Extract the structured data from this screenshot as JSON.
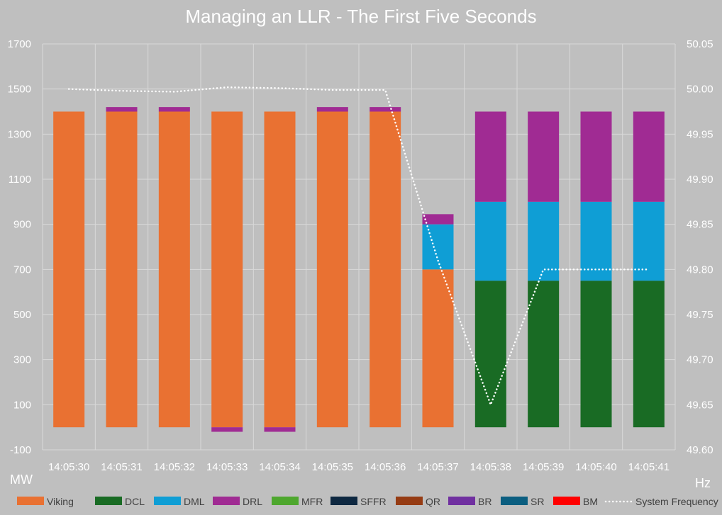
{
  "chart_data": {
    "type": "bar",
    "stacked": true,
    "title": "Managing an LLR - The First Five Seconds",
    "ylabel": "MW",
    "y2label": "Hz",
    "ylim": [
      -100,
      1700
    ],
    "yticks": [
      -100,
      100,
      300,
      500,
      700,
      900,
      1100,
      1300,
      1500,
      1700
    ],
    "y2lim": [
      49.6,
      50.05
    ],
    "y2ticks": [
      "49.60",
      "49.65",
      "49.70",
      "49.75",
      "49.80",
      "49.85",
      "49.90",
      "49.95",
      "50.00",
      "50.05"
    ],
    "grid": true,
    "legend_position": "bottom",
    "background": "#bfbfbf",
    "categories": [
      "14:05:30",
      "14:05:31",
      "14:05:32",
      "14:05:33",
      "14:05:34",
      "14:05:35",
      "14:05:36",
      "14:05:37",
      "14:05:38",
      "14:05:39",
      "14:05:40",
      "14:05:41"
    ],
    "series": [
      {
        "name": "Viking",
        "color": "#e97132",
        "values": [
          1400,
          1400,
          1400,
          1400,
          1400,
          1400,
          1400,
          700,
          0,
          0,
          0,
          0
        ]
      },
      {
        "name": "DCL",
        "color": "#196b24",
        "values": [
          0,
          0,
          0,
          0,
          0,
          0,
          0,
          0,
          650,
          650,
          650,
          650
        ]
      },
      {
        "name": "DML",
        "color": "#0f9ed5",
        "values": [
          0,
          0,
          0,
          0,
          0,
          0,
          0,
          200,
          350,
          350,
          350,
          350
        ]
      },
      {
        "name": "DRL",
        "color": "#a02b93",
        "values": [
          0,
          20,
          20,
          -20,
          -20,
          20,
          20,
          45,
          400,
          400,
          400,
          400
        ]
      },
      {
        "name": "MFR",
        "color": "#4ea72e",
        "values": [
          0,
          0,
          0,
          0,
          0,
          0,
          0,
          0,
          0,
          0,
          0,
          0
        ]
      },
      {
        "name": "SFFR",
        "color": "#0e2841",
        "values": [
          0,
          0,
          0,
          0,
          0,
          0,
          0,
          0,
          0,
          0,
          0,
          0
        ]
      },
      {
        "name": "QR",
        "color": "#963c14",
        "values": [
          0,
          0,
          0,
          0,
          0,
          0,
          0,
          0,
          0,
          0,
          0,
          0
        ]
      },
      {
        "name": "BR",
        "color": "#7030a0",
        "values": [
          0,
          0,
          0,
          0,
          0,
          0,
          0,
          0,
          0,
          0,
          0,
          0
        ]
      },
      {
        "name": "SR",
        "color": "#0b5e80",
        "values": [
          0,
          0,
          0,
          0,
          0,
          0,
          0,
          0,
          0,
          0,
          0,
          0
        ]
      },
      {
        "name": "BM",
        "color": "#ff0000",
        "values": [
          0,
          0,
          0,
          0,
          0,
          0,
          0,
          0,
          0,
          0,
          0,
          0
        ]
      }
    ],
    "line_series": {
      "name": "System Frequency",
      "color": "#ffffff",
      "style": "dotted",
      "axis": "right",
      "values": [
        50.0,
        49.998,
        49.997,
        50.002,
        50.001,
        49.999,
        49.999,
        49.81,
        49.65,
        49.8,
        49.8,
        49.8
      ]
    }
  }
}
